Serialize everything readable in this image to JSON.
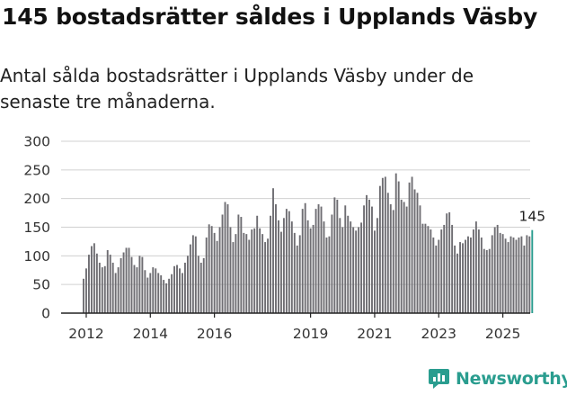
{
  "title": "145 bostadsrätter såldes i Upplands Väsby",
  "subtitle": "Antal sålda bostadsrätter i Upplands Väsby under de senaste tre månaderna.",
  "brand": {
    "name": "Newsworthy",
    "color": "#2a9d8f"
  },
  "colors": {
    "bar": "#6e6d72",
    "highlight": "#2a9d8f",
    "grid": "#d0d0d0",
    "axis": "#222222"
  },
  "chart_data": {
    "type": "bar",
    "title": "145 bostadsrätter såldes i Upplands Väsby",
    "subtitle": "Antal sålda bostadsrätter i Upplands Väsby under de senaste tre månaderna.",
    "xlabel": "",
    "ylabel": "",
    "ylim": [
      0,
      300
    ],
    "yticks": [
      0,
      50,
      100,
      150,
      200,
      250,
      300
    ],
    "xticks": [
      {
        "label": "2012",
        "index": 1
      },
      {
        "label": "2014",
        "index": 25
      },
      {
        "label": "2016",
        "index": 49
      },
      {
        "label": "2019",
        "index": 85
      },
      {
        "label": "2021",
        "index": 109
      },
      {
        "label": "2023",
        "index": 133
      },
      {
        "label": "2025",
        "index": 157
      }
    ],
    "highlight_label": "145",
    "values": [
      60,
      78,
      102,
      117,
      122,
      104,
      88,
      80,
      82,
      110,
      102,
      88,
      70,
      80,
      96,
      106,
      114,
      114,
      98,
      84,
      80,
      100,
      98,
      75,
      62,
      70,
      80,
      78,
      70,
      66,
      58,
      52,
      60,
      68,
      82,
      84,
      78,
      70,
      88,
      100,
      120,
      136,
      134,
      100,
      88,
      96,
      132,
      155,
      152,
      140,
      126,
      150,
      172,
      194,
      190,
      150,
      124,
      138,
      172,
      168,
      140,
      138,
      128,
      146,
      148,
      170,
      148,
      138,
      124,
      130,
      170,
      218,
      190,
      162,
      142,
      166,
      182,
      178,
      160,
      140,
      118,
      136,
      182,
      192,
      162,
      148,
      154,
      182,
      190,
      186,
      160,
      132,
      134,
      172,
      202,
      198,
      166,
      150,
      188,
      170,
      160,
      150,
      144,
      150,
      158,
      188,
      206,
      198,
      186,
      144,
      166,
      222,
      236,
      238,
      210,
      190,
      180,
      244,
      230,
      198,
      194,
      186,
      228,
      238,
      216,
      210,
      188,
      156,
      156,
      152,
      146,
      132,
      118,
      128,
      146,
      154,
      174,
      176,
      154,
      118,
      104,
      124,
      122,
      128,
      134,
      132,
      146,
      160,
      146,
      132,
      112,
      110,
      112,
      136,
      150,
      154,
      140,
      138,
      130,
      124,
      134,
      132,
      128,
      132,
      134,
      118,
      136,
      134,
      145
    ]
  }
}
